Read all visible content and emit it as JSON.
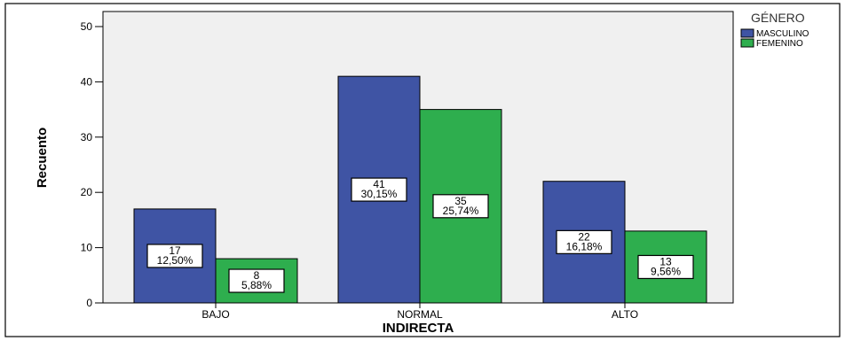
{
  "chart_data": {
    "type": "bar",
    "title": "",
    "xlabel": "INDIRECTA",
    "ylabel": "Recuento",
    "categories": [
      "BAJO",
      "NORMAL",
      "ALTO"
    ],
    "ylim": [
      0,
      52
    ],
    "yticks": [
      0,
      10,
      20,
      30,
      40,
      50
    ],
    "grid": false,
    "legend": {
      "title": "GÉNERO",
      "placement": "top-right outside"
    },
    "series": [
      {
        "name": "MASCULINO",
        "color": "#3f54a4",
        "values": [
          17,
          41,
          22
        ],
        "labels": [
          [
            "17",
            "12,50%"
          ],
          [
            "41",
            "30,15%"
          ],
          [
            "22",
            "16,18%"
          ]
        ]
      },
      {
        "name": "FEMENINO",
        "color": "#2eae4e",
        "values": [
          8,
          35,
          13
        ],
        "labels": [
          [
            "8",
            "5,88%"
          ],
          [
            "35",
            "25,74%"
          ],
          [
            "13",
            "9,56%"
          ]
        ]
      }
    ]
  }
}
